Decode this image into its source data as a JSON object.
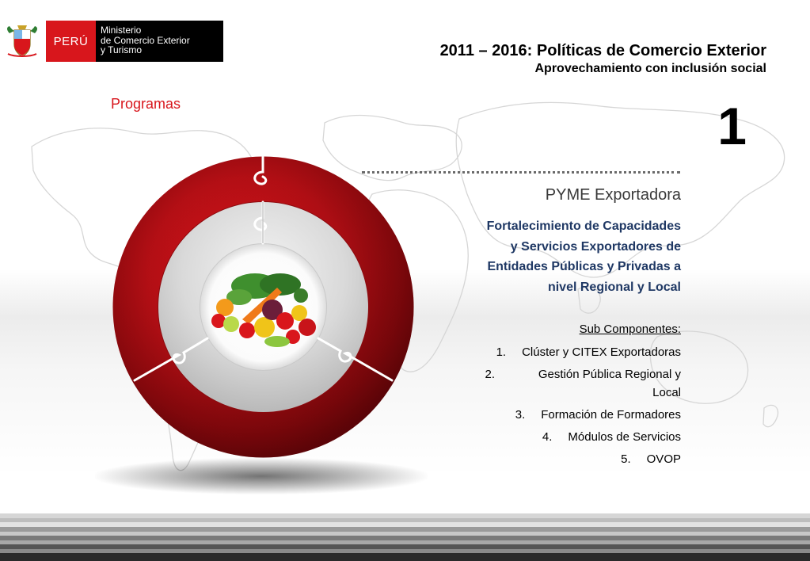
{
  "logo": {
    "country": "PERÚ",
    "ministry_lines": [
      "Ministerio",
      "de Comercio Exterior",
      "y Turismo"
    ]
  },
  "header": {
    "title": "2011 – 2016: Políticas de Comercio Exterior",
    "subtitle": "Aprovechamiento con inclusión social"
  },
  "section_label": "Programas",
  "program_number": "1",
  "program": {
    "name": "PYME Exportadora",
    "description": "Fortalecimiento de Capacidades y Servicios Exportadores de Entidades Públicas y Privadas a nivel Regional y Local",
    "description_lines": [
      "Fortalecimiento de Capacidades",
      "y Servicios Exportadores de",
      "Entidades Públicas y Privadas a",
      "nivel Regional y Local"
    ],
    "components_label": "Sub Componentes:",
    "components": [
      {
        "num": "1.",
        "label": "Clúster y CITEX Exportadoras"
      },
      {
        "num": "2.",
        "label": "Gestión Pública Regional y Local"
      },
      {
        "num": "3.",
        "label": "Formación de Formadores"
      },
      {
        "num": "4.",
        "label": "Módulos de Servicios"
      },
      {
        "num": "5.",
        "label": "OVOP"
      }
    ]
  },
  "colors": {
    "brand_red": "#d8161c",
    "ring_red": "#a40d12",
    "description_blue": "#1f3864"
  },
  "icons": [
    "peru-coat-of-arms-icon",
    "world-map",
    "puzzle-ring-diagram",
    "vegetables-photo"
  ]
}
